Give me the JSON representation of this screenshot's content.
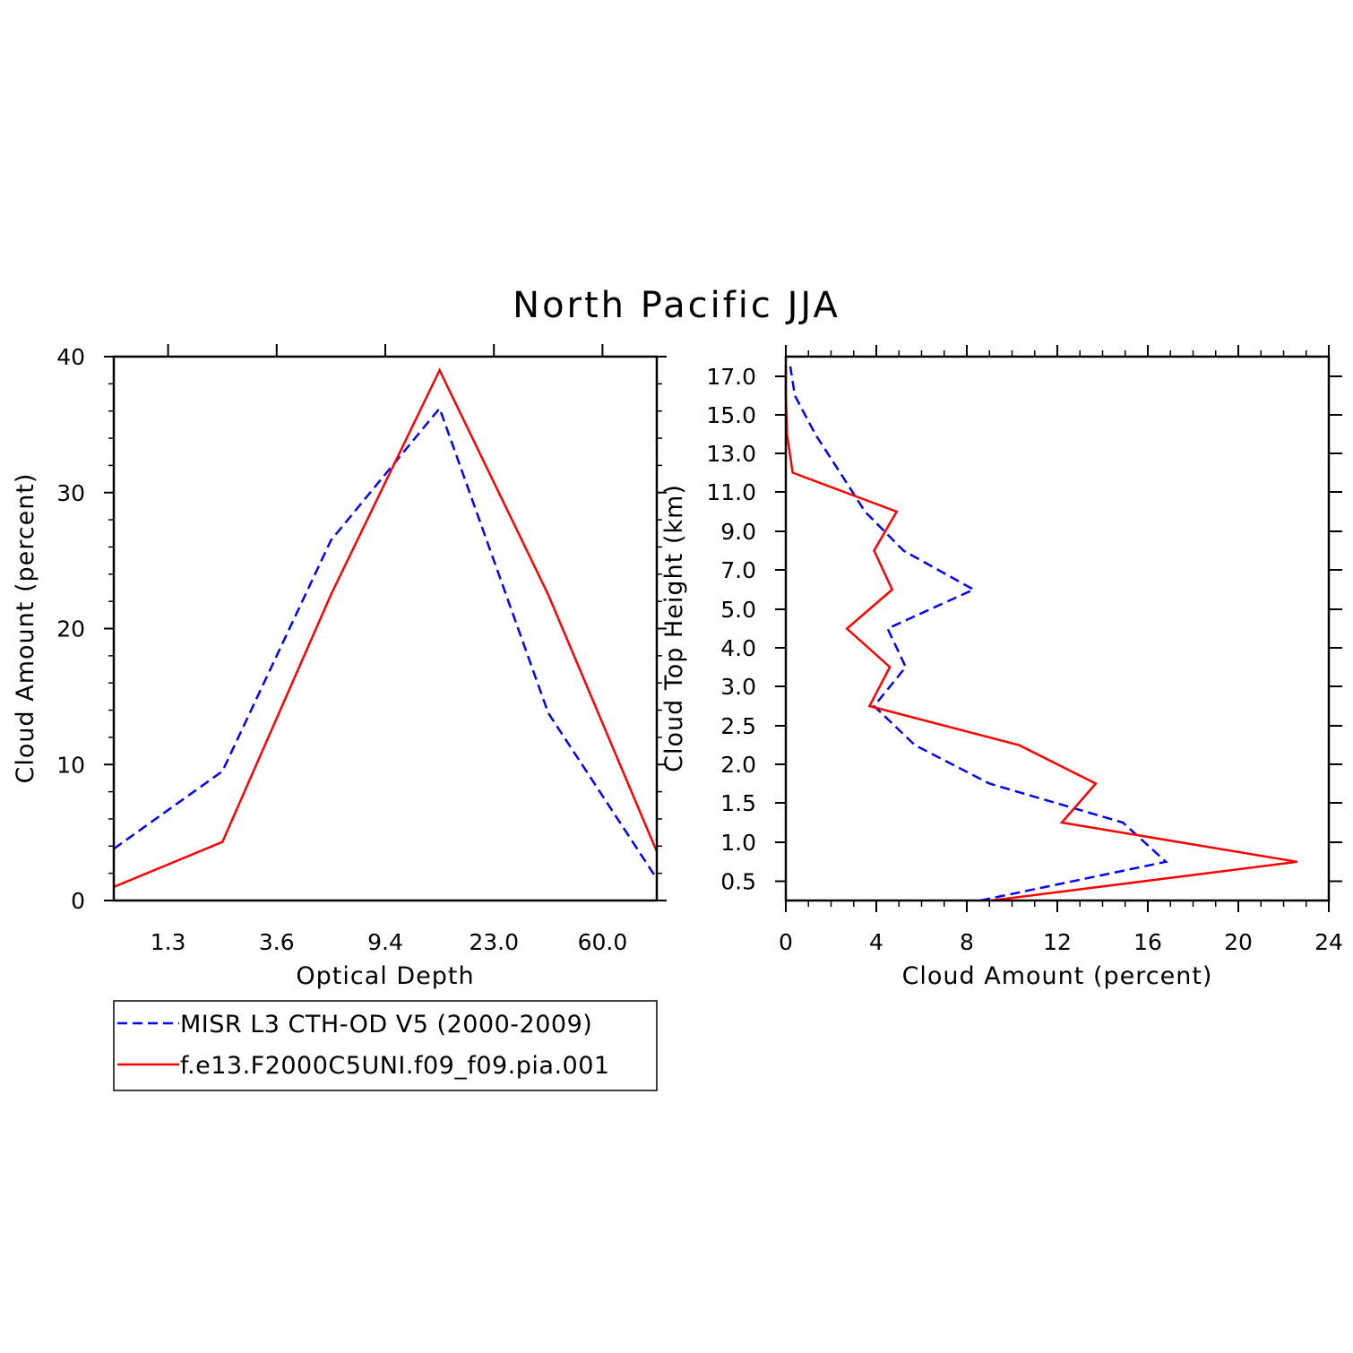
{
  "title": "North Pacific JJA",
  "colors": {
    "obs": "#0000ff",
    "model": "#ff0000",
    "axis": "#000000"
  },
  "legend": {
    "items": [
      {
        "label": "MISR L3 CTH-OD V5 (2000-2009)",
        "color": "#0000ff",
        "style": "dashed"
      },
      {
        "label": "f.e13.F2000C5UNI.f09_f09.pia.001",
        "color": "#ff0000",
        "style": "solid"
      }
    ]
  },
  "chart_data": [
    {
      "type": "line",
      "xlabel": "Optical Depth",
      "ylabel": "Cloud Amount (percent)",
      "x_tick_labels": [
        "1.3",
        "3.6",
        "9.4",
        "23.0",
        "60.0"
      ],
      "y_ticks": [
        0,
        10,
        20,
        30,
        40
      ],
      "ylim": [
        0,
        40
      ],
      "x_categories": [
        "",
        "1.3",
        "",
        "3.6",
        "",
        "9.4",
        "",
        "23.0",
        "",
        "60.0",
        ""
      ],
      "series": [
        {
          "name": "MISR L3 CTH-OD V5 (2000-2009)",
          "x": [
            0,
            2,
            4,
            6,
            8,
            10
          ],
          "values": [
            3.8,
            9.5,
            26.5,
            36.2,
            13.8,
            1.6
          ]
        },
        {
          "name": "f.e13.F2000C5UNI.f09_f09.pia.001",
          "x": [
            0,
            2,
            4,
            6,
            8,
            10
          ],
          "values": [
            1.0,
            4.3,
            22.5,
            39.0,
            22.5,
            3.6
          ]
        }
      ]
    },
    {
      "type": "line",
      "xlabel": "Cloud Amount (percent)",
      "ylabel": "Cloud Top Height (km)",
      "x_ticks": [
        0,
        4,
        8,
        12,
        16,
        20,
        24
      ],
      "xlim": [
        0,
        24
      ],
      "y_tick_labels": [
        "0.5",
        "1.0",
        "1.5",
        "2.0",
        "2.5",
        "3.0",
        "4.0",
        "5.0",
        "7.0",
        "9.0",
        "11.0",
        "13.0",
        "15.0",
        "17.0"
      ],
      "series": [
        {
          "name": "MISR L3 CTH-OD V5 (2000-2009)",
          "heights_km": [
            0.0,
            0.75,
            1.25,
            1.75,
            2.25,
            2.75,
            3.5,
            4.5,
            6.0,
            8.0,
            10.0,
            12.0,
            14.0,
            16.0,
            17.5
          ],
          "values": [
            8.6,
            16.8,
            14.9,
            9.0,
            5.7,
            3.9,
            5.3,
            4.5,
            8.3,
            5.2,
            3.5,
            2.4,
            1.3,
            0.4,
            0.2
          ]
        },
        {
          "name": "f.e13.F2000C5UNI.f09_f09.pia.001",
          "heights_km": [
            0.0,
            0.75,
            1.25,
            1.75,
            2.25,
            2.75,
            3.5,
            4.5,
            6.0,
            8.0,
            10.0,
            12.0,
            14.0,
            16.0,
            17.5
          ],
          "values": [
            9.1,
            22.6,
            12.2,
            13.7,
            10.3,
            3.7,
            4.6,
            2.7,
            4.7,
            3.9,
            4.9,
            0.3,
            0.05,
            0.0,
            0.0
          ]
        }
      ]
    }
  ]
}
